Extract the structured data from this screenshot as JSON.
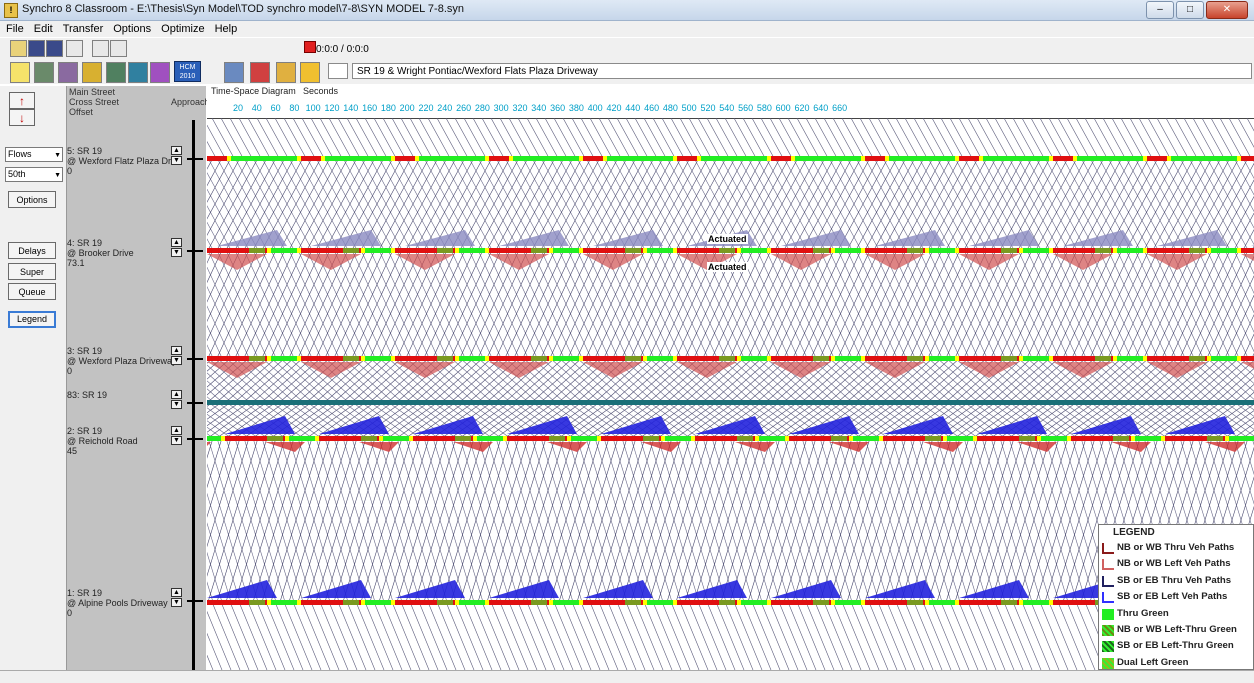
{
  "window": {
    "title": "Synchro 8 Classroom - E:\\Thesis\\Syn Model\\TOD synchro model\\7-8\\SYN MODEL 7-8.syn",
    "app_icon": "!"
  },
  "menu": [
    "File",
    "Edit",
    "Transfer",
    "Options",
    "Optimize",
    "Help"
  ],
  "toolbar": {
    "time": "0:0:0 /  0:0:0",
    "hcm_label": "HCM 2010",
    "intersection_desc": "SR 19 & Wright Pontiac/Wexford Flats Plaza Driveway"
  },
  "left_panel": {
    "up_arrow": "↑",
    "down_arrow": "↓",
    "flows_select": "Flows",
    "percentile_select": "50th",
    "options_btn": "Options",
    "delays_btn": "Delays",
    "super_btn": "Super",
    "queue_btn": "Queue",
    "legend_btn": "Legend"
  },
  "header": {
    "main_street": "Main Street",
    "cross_street": "Cross Street",
    "offset": "Offset",
    "approach": "Approach"
  },
  "diagram": {
    "title": "Time-Space Diagram",
    "unit": "Seconds",
    "ticks": [
      "20",
      "40",
      "60",
      "80",
      "100",
      "120",
      "140",
      "160",
      "180",
      "200",
      "220",
      "240",
      "260",
      "280",
      "300",
      "320",
      "340",
      "360",
      "380",
      "400",
      "420",
      "440",
      "460",
      "480",
      "500",
      "520",
      "540",
      "560",
      "580",
      "600",
      "620",
      "640",
      "660"
    ],
    "actuated_labels": [
      "Actuated",
      "Actuated"
    ]
  },
  "intersections": [
    {
      "name": "5: SR 19",
      "cross": "@ Wexford Flatz Plaza Driv",
      "offset": "0"
    },
    {
      "name": "4: SR 19",
      "cross": "@ Brooker Drive",
      "offset": "73.1"
    },
    {
      "name": "3: SR 19",
      "cross": "@ Wexford Plaza Driveway",
      "offset": "0"
    },
    {
      "name": "83: SR 19",
      "cross": "",
      "offset": ""
    },
    {
      "name": "2: SR 19",
      "cross": "@ Reichold Road",
      "offset": "45"
    },
    {
      "name": "1: SR 19",
      "cross": "@ Alpine Pools Driveway",
      "offset": "0"
    }
  ],
  "legend": {
    "title": "LEGEND",
    "items": [
      {
        "label": "NB or WB Thru Veh Paths",
        "color": "#8a1a1a"
      },
      {
        "label": "NB or WB Left Veh Paths",
        "color": "#d06060"
      },
      {
        "label": "SB or EB Thru Veh Paths",
        "color": "#202060"
      },
      {
        "label": "SB or EB Left Veh Paths",
        "color": "#3030ff"
      },
      {
        "label": "Thru Green",
        "color": "#22ee22"
      },
      {
        "label": "NB or WB Left-Thru Green",
        "color": "#6a8a10"
      },
      {
        "label": "SB or EB Left-Thru Green",
        "color": "#1a6a1a"
      },
      {
        "label": "Dual Left Green",
        "color": "#9ab81a"
      }
    ]
  },
  "colors": {
    "green": "#22ee22",
    "red": "#e01010",
    "yellow": "#ffff00",
    "blue": "#2222dd",
    "teal": "#1a6f78"
  }
}
